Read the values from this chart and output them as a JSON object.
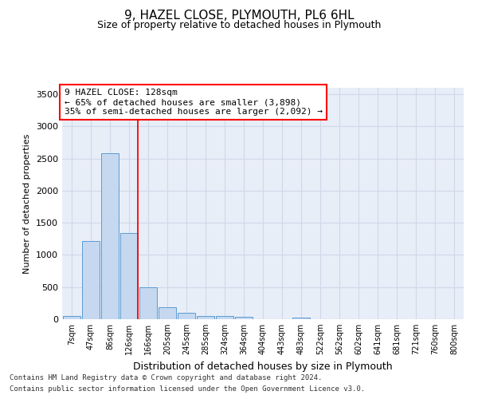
{
  "title": "9, HAZEL CLOSE, PLYMOUTH, PL6 6HL",
  "subtitle": "Size of property relative to detached houses in Plymouth",
  "xlabel": "Distribution of detached houses by size in Plymouth",
  "ylabel": "Number of detached properties",
  "categories": [
    "7sqm",
    "47sqm",
    "86sqm",
    "126sqm",
    "166sqm",
    "205sqm",
    "245sqm",
    "285sqm",
    "324sqm",
    "364sqm",
    "404sqm",
    "443sqm",
    "483sqm",
    "522sqm",
    "562sqm",
    "602sqm",
    "641sqm",
    "681sqm",
    "721sqm",
    "760sqm",
    "800sqm"
  ],
  "bar_heights": [
    55,
    1220,
    2580,
    1340,
    500,
    185,
    105,
    55,
    45,
    35,
    0,
    0,
    30,
    0,
    0,
    0,
    0,
    0,
    0,
    0,
    0
  ],
  "bar_color": "#c5d8ef",
  "bar_edge_color": "#5b9bd5",
  "grid_color": "#d0d8e8",
  "background_color": "#e8eef8",
  "ylim": [
    0,
    3600
  ],
  "yticks": [
    0,
    500,
    1000,
    1500,
    2000,
    2500,
    3000,
    3500
  ],
  "vline_index": 3,
  "annotation_line1": "9 HAZEL CLOSE: 128sqm",
  "annotation_line2": "← 65% of detached houses are smaller (3,898)",
  "annotation_line3": "35% of semi-detached houses are larger (2,092) →",
  "footer_line1": "Contains HM Land Registry data © Crown copyright and database right 2024.",
  "footer_line2": "Contains public sector information licensed under the Open Government Licence v3.0."
}
